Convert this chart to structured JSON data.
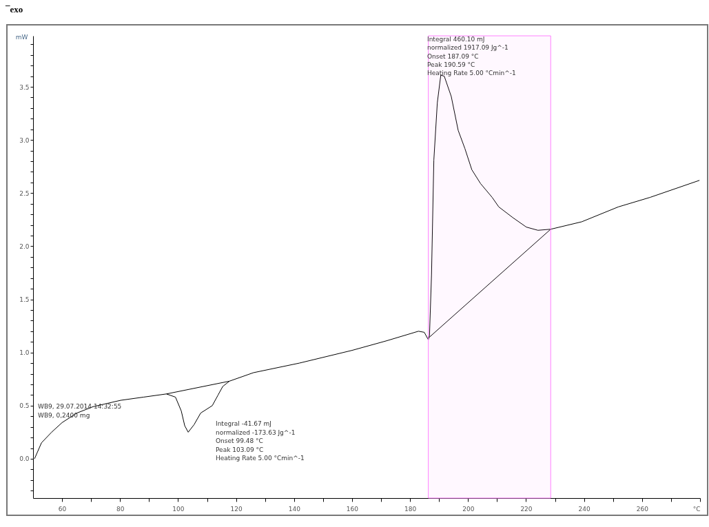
{
  "chart_data": {
    "type": "line",
    "ylabel": "mW",
    "xlim": [
      50,
      280
    ],
    "ylim": [
      -0.37,
      3.98
    ],
    "xticks": [
      {
        "value": 60,
        "label": "60"
      },
      {
        "value": 70,
        "label": null
      },
      {
        "value": 80,
        "label": "80"
      },
      {
        "value": 90,
        "label": null
      },
      100,
      {
        "value": 110,
        "label": null
      },
      120,
      {
        "value": 130,
        "label": null
      },
      140,
      {
        "value": 150,
        "label": null
      },
      160,
      {
        "value": 170,
        "label": null
      },
      180,
      {
        "value": 190,
        "label": null
      },
      200,
      {
        "value": 210,
        "label": null
      },
      220,
      {
        "value": 230,
        "label": null
      },
      240,
      {
        "value": 250,
        "label": null
      },
      260,
      {
        "value": 270,
        "label": null
      },
      {
        "value": 280,
        "label": "°C"
      }
    ],
    "yticks": [
      {
        "value": -0.3,
        "label": null
      },
      {
        "value": -0.2,
        "label": null
      },
      {
        "value": -0.1,
        "label": null
      },
      {
        "value": 0,
        "label": "0.0"
      },
      {
        "value": 0.1,
        "label": null
      },
      {
        "value": 0.2,
        "label": null
      },
      {
        "value": 0.3,
        "label": null
      },
      {
        "value": 0.4,
        "label": null
      },
      0.5,
      {
        "value": 0.6,
        "label": null
      },
      {
        "value": 0.7,
        "label": null
      },
      {
        "value": 0.8,
        "label": null
      },
      {
        "value": 0.9,
        "label": null
      },
      {
        "value": 1,
        "label": "1.0"
      },
      {
        "value": 1.1,
        "label": null
      },
      {
        "value": 1.2,
        "label": null
      },
      {
        "value": 1.3,
        "label": null
      },
      {
        "value": 1.4,
        "label": null
      },
      1.5,
      {
        "value": 1.6,
        "label": null
      },
      {
        "value": 1.7,
        "label": null
      },
      {
        "value": 1.8,
        "label": null
      },
      {
        "value": 1.9,
        "label": null
      },
      {
        "value": 2,
        "label": "2.0"
      },
      {
        "value": 2.1,
        "label": null
      },
      {
        "value": 2.2,
        "label": null
      },
      {
        "value": 2.3,
        "label": null
      },
      {
        "value": 2.4,
        "label": null
      },
      2.5,
      {
        "value": 2.6,
        "label": null
      },
      {
        "value": 2.7,
        "label": null
      },
      {
        "value": 2.8,
        "label": null
      },
      {
        "value": 2.9,
        "label": null
      },
      {
        "value": 3,
        "label": "3.0"
      },
      {
        "value": 3.1,
        "label": null
      },
      {
        "value": 3.2,
        "label": null
      },
      {
        "value": 3.3,
        "label": null
      },
      {
        "value": 3.4,
        "label": null
      },
      3.5,
      {
        "value": 3.6,
        "label": null
      },
      {
        "value": 3.7,
        "label": null
      },
      {
        "value": 3.8,
        "label": null
      },
      {
        "value": 3.9,
        "label": null
      }
    ],
    "series": [
      {
        "color": "#000000",
        "x": [
          50.5,
          52.9,
          56.4,
          60.0,
          65.1,
          70.7,
          80.2,
          88.1,
          96.0,
          99.1,
          101.1,
          102.3,
          103.5,
          105.5,
          107.8,
          111.8,
          113.8,
          115.4,
          117.7,
          126.0,
          141.8,
          160.0,
          171.9,
          182.9,
          184.9,
          186.3,
          186.7,
          187.4,
          188.2,
          189.4,
          190.6,
          191.8,
          194.2,
          196.6,
          198.9,
          201.3,
          204.3,
          208.3,
          210.6,
          215.4,
          220.1,
          224.1,
          228.5,
          239.2,
          251.8,
          262.8,
          279.8
        ],
        "values": [
          0.0,
          0.15,
          0.25,
          0.34,
          0.43,
          0.49,
          0.55,
          0.58,
          0.61,
          0.58,
          0.45,
          0.31,
          0.25,
          0.32,
          0.43,
          0.5,
          0.6,
          0.68,
          0.73,
          0.81,
          0.9,
          1.02,
          1.11,
          1.2,
          1.19,
          1.12,
          1.16,
          1.73,
          2.81,
          3.35,
          3.61,
          3.6,
          3.41,
          3.09,
          2.92,
          2.72,
          2.59,
          2.46,
          2.37,
          2.27,
          2.18,
          2.15,
          2.16,
          2.23,
          2.37,
          2.46,
          2.62
        ]
      },
      {
        "color": "#000000",
        "x": [
          96.0,
          117.7
        ],
        "values": [
          0.61,
          0.73
        ]
      },
      {
        "color": "#000000",
        "x": [
          186.5,
          228.5
        ],
        "values": [
          1.14,
          2.16
        ]
      }
    ],
    "bands": [
      {
        "axis": "x",
        "from": 186.3,
        "to": 228.5,
        "color": "#ff80ff"
      }
    ],
    "marker": "none",
    "line_style": "solid",
    "grid": false,
    "legend": false,
    "annotations": [
      "¯exo",
      "WB9, 29.07.2014 14:32:55",
      "WB9, 0,2400 mg",
      "Integral -41.67 mJ",
      "normalized -173.63 Jg^-1",
      "Onset 99.48 °C",
      "Peak 103.09 °C",
      "Heating Rate 5.00 °Cmin^-1",
      "Integral 460.10 mJ",
      "normalized 1917.09 Jg^-1",
      "Onset 187.09 °C",
      "Peak 190.59 °C",
      "Heating Rate 5.00 °Cmin^-1"
    ]
  }
}
